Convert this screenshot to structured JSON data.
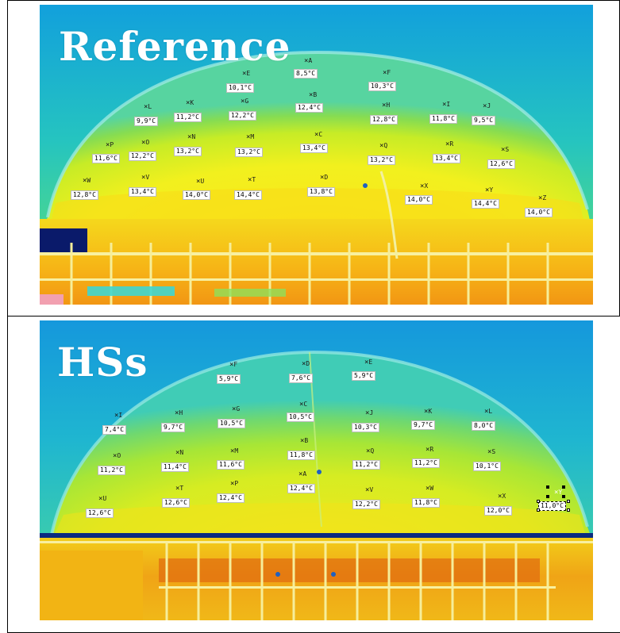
{
  "panels": [
    {
      "heading": "Reference",
      "points": [
        {
          "letter": "A",
          "temp": "8,5°C"
        },
        {
          "letter": "B",
          "temp": "12,4°C"
        },
        {
          "letter": "C",
          "temp": "13,4°C"
        },
        {
          "letter": "D",
          "temp": "13,8°C"
        },
        {
          "letter": "E",
          "temp": "10,1°C"
        },
        {
          "letter": "F",
          "temp": "10,3°C"
        },
        {
          "letter": "G",
          "temp": "12,2°C"
        },
        {
          "letter": "H",
          "temp": "12,8°C"
        },
        {
          "letter": "I",
          "temp": "11,8°C"
        },
        {
          "letter": "J",
          "temp": "9,5°C"
        },
        {
          "letter": "K",
          "temp": "11,2°C"
        },
        {
          "letter": "L",
          "temp": "9,9°C"
        },
        {
          "letter": "M",
          "temp": "13,2°C"
        },
        {
          "letter": "N",
          "temp": "13,2°C"
        },
        {
          "letter": "O",
          "temp": "12,2°C"
        },
        {
          "letter": "P",
          "temp": "11,6°C"
        },
        {
          "letter": "Q",
          "temp": "13,2°C"
        },
        {
          "letter": "R",
          "temp": "13,4°C"
        },
        {
          "letter": "S",
          "temp": "12,6°C"
        },
        {
          "letter": "T",
          "temp": "14,4°C"
        },
        {
          "letter": "U",
          "temp": "14,0°C"
        },
        {
          "letter": "V",
          "temp": "13,4°C"
        },
        {
          "letter": "W",
          "temp": "12,8°C"
        },
        {
          "letter": "X",
          "temp": "14,0°C"
        },
        {
          "letter": "Y",
          "temp": "14,4°C"
        },
        {
          "letter": "Z",
          "temp": "14,0°C"
        }
      ]
    },
    {
      "heading": "HSs",
      "points": [
        {
          "letter": "A",
          "temp": "12,4°C"
        },
        {
          "letter": "B",
          "temp": "11,8°C"
        },
        {
          "letter": "C",
          "temp": "10,5°C"
        },
        {
          "letter": "D",
          "temp": "7,6°C"
        },
        {
          "letter": "E",
          "temp": "5,9°C"
        },
        {
          "letter": "F",
          "temp": "5,9°C"
        },
        {
          "letter": "G",
          "temp": "10,5°C"
        },
        {
          "letter": "H",
          "temp": "9,7°C"
        },
        {
          "letter": "I",
          "temp": "7,4°C"
        },
        {
          "letter": "J",
          "temp": "10,3°C"
        },
        {
          "letter": "K",
          "temp": "9,7°C"
        },
        {
          "letter": "L",
          "temp": "8,0°C"
        },
        {
          "letter": "M",
          "temp": "11,6°C"
        },
        {
          "letter": "N",
          "temp": "11,4°C"
        },
        {
          "letter": "O",
          "temp": "11,2°C"
        },
        {
          "letter": "P",
          "temp": "12,4°C"
        },
        {
          "letter": "Q",
          "temp": "11,2°C"
        },
        {
          "letter": "R",
          "temp": "11,2°C"
        },
        {
          "letter": "S",
          "temp": "10,1°C"
        },
        {
          "letter": "T",
          "temp": "12,6°C"
        },
        {
          "letter": "U",
          "temp": "12,6°C"
        },
        {
          "letter": "V",
          "temp": "12,2°C"
        },
        {
          "letter": "W",
          "temp": "11,8°C"
        },
        {
          "letter": "X",
          "temp": "12,0°C"
        },
        {
          "letter": "Y",
          "temp": "11,0°C"
        }
      ]
    }
  ],
  "colors": {
    "sky_top": "#1aa0d8",
    "sky_mid": "#2fd0a8",
    "dome_edge": "#7ee0d6",
    "dome_body": "#dff020",
    "warm": "#f7d418",
    "hot": "#f08a10",
    "cool": "#7fd83a",
    "label_bg": "#ffffff"
  }
}
